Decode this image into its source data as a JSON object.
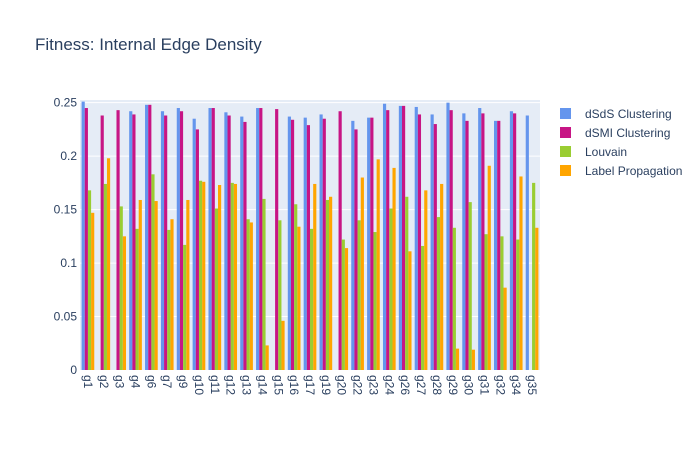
{
  "chart_data": {
    "type": "bar",
    "title": "Fitness: Internal Edge Density",
    "xlabel": "",
    "ylabel": "",
    "ylim": [
      0,
      0.2525
    ],
    "yticks": [
      0,
      0.05,
      0.1,
      0.15,
      0.2,
      0.25
    ],
    "ytick_labels": [
      "0",
      "0.05",
      "0.1",
      "0.15",
      "0.2",
      "0.25"
    ],
    "grid": true,
    "legend_position": "top-right",
    "categories": [
      "g1",
      "g2",
      "g3",
      "g4",
      "g6",
      "g7",
      "g9",
      "g10",
      "g11",
      "g12",
      "g13",
      "g14",
      "g15",
      "g16",
      "g17",
      "g19",
      "g20",
      "g22",
      "g23",
      "g24",
      "g26",
      "g27",
      "g28",
      "g29",
      "g30",
      "g31",
      "g32",
      "g34",
      "g35"
    ],
    "series": [
      {
        "name": "dSdS Clustering",
        "color": "#6495ed",
        "values": [
          0.251,
          0,
          0,
          0.242,
          0.248,
          0.242,
          0.245,
          0.235,
          0.245,
          0.241,
          0.237,
          0.245,
          0,
          0.237,
          0.236,
          0.239,
          0,
          0.233,
          0.236,
          0.249,
          0.247,
          0.246,
          0.239,
          0.25,
          0.24,
          0.245,
          0.233,
          0.242,
          0.238
        ]
      },
      {
        "name": "dSMI Clustering",
        "color": "#c71585",
        "values": [
          0.245,
          0.238,
          0.243,
          0.239,
          0.248,
          0.238,
          0.242,
          0.225,
          0.245,
          0.238,
          0.232,
          0.245,
          0.244,
          0.234,
          0.229,
          0.235,
          0.242,
          0.225,
          0.236,
          0.243,
          0.247,
          0.239,
          0.23,
          0.243,
          0.233,
          0.24,
          0.233,
          0.24,
          0
        ]
      },
      {
        "name": "Louvain",
        "color": "#9acd32",
        "values": [
          0.168,
          0.174,
          0.153,
          0.132,
          0.183,
          0.131,
          0.117,
          0.177,
          0.151,
          0.175,
          0.141,
          0.16,
          0.14,
          0.155,
          0.132,
          0.159,
          0.122,
          0.14,
          0.129,
          0.151,
          0.162,
          0.116,
          0.143,
          0.133,
          0.157,
          0.127,
          0.125,
          0.122,
          0.175
        ]
      },
      {
        "name": "Label Propagation",
        "color": "#ffa500",
        "values": [
          0.147,
          0.198,
          0.125,
          0.159,
          0.158,
          0.141,
          0.159,
          0.176,
          0.173,
          0.174,
          0.138,
          0.023,
          0.046,
          0.134,
          0.174,
          0.162,
          0.114,
          0.18,
          0.197,
          0.189,
          0.111,
          0.168,
          0.174,
          0.02,
          0.019,
          0.191,
          0.077,
          0.181,
          0.133
        ]
      }
    ]
  },
  "colors": {
    "plot_bg": "#e5ecf6",
    "grid": "#ffffff",
    "text": "#2a3f5f"
  }
}
